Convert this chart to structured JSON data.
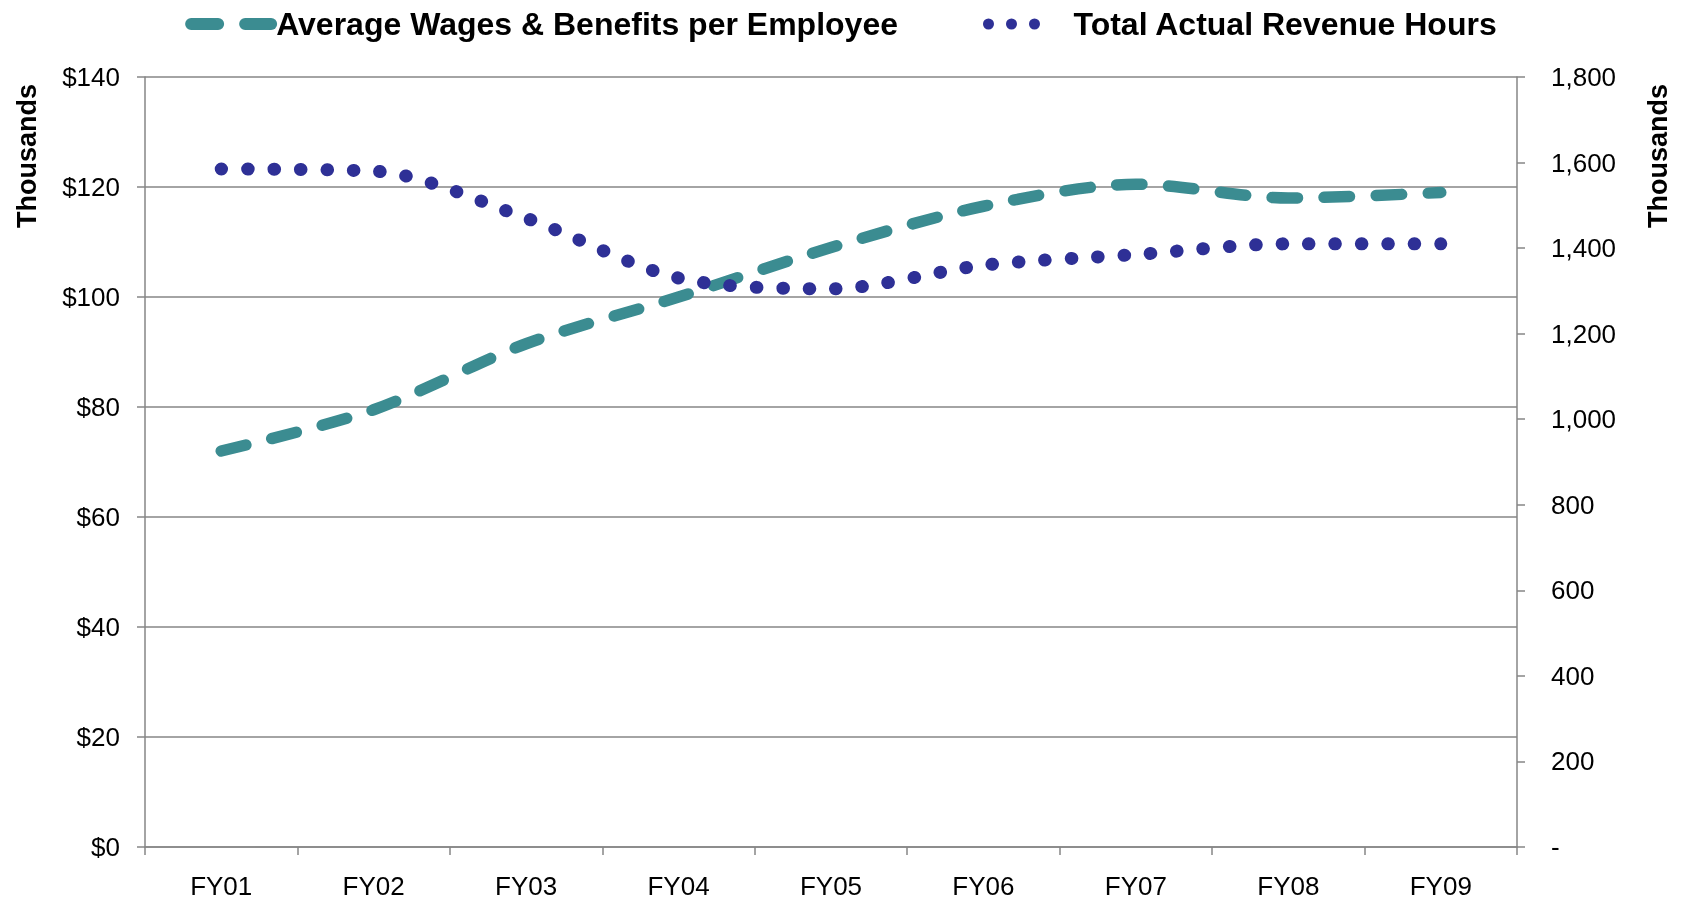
{
  "chart_data": {
    "type": "line",
    "categories": [
      "FY01",
      "FY02",
      "FY03",
      "FY04",
      "FY05",
      "FY06",
      "FY07",
      "FY08",
      "FY09"
    ],
    "ylabel": "Thousands",
    "y2label": "Thousands",
    "ylim": [
      0,
      140
    ],
    "yticks": [
      {
        "value": 0,
        "label": "$0"
      },
      {
        "value": 20,
        "label": "$20"
      },
      {
        "value": 40,
        "label": "$40"
      },
      {
        "value": 60,
        "label": "$60"
      },
      {
        "value": 80,
        "label": "$80"
      },
      {
        "value": 100,
        "label": "$100"
      },
      {
        "value": 120,
        "label": "$120"
      },
      {
        "value": 140,
        "label": "$140"
      }
    ],
    "y2lim": [
      0,
      1800
    ],
    "y2ticks": [
      {
        "value": 0,
        "label": "-"
      },
      200,
      400,
      600,
      800,
      {
        "value": 1000,
        "label": "1,000"
      },
      {
        "value": 1200,
        "label": "1,200"
      },
      {
        "value": 1400,
        "label": "1,400"
      },
      {
        "value": 1600,
        "label": "1,600"
      },
      {
        "value": 1800,
        "label": "1,800"
      }
    ],
    "series": [
      {
        "name": "Average Wages & Benefits per Employee",
        "color": "#3b8c91",
        "line_style": "dashed",
        "values": [
          72,
          79.5,
          91.5,
          100,
          109,
          116.5,
          120.5,
          118,
          119
        ]
      },
      {
        "name": "Total Actual Revenue Hours",
        "color": "#2e3096",
        "line_style": "dotted",
        "axis": "y2",
        "values": [
          1585,
          1580,
          1470,
          1330,
          1305,
          1360,
          1385,
          1410,
          1410
        ]
      }
    ],
    "grid": "y",
    "legend": "top",
    "marker": "none"
  }
}
